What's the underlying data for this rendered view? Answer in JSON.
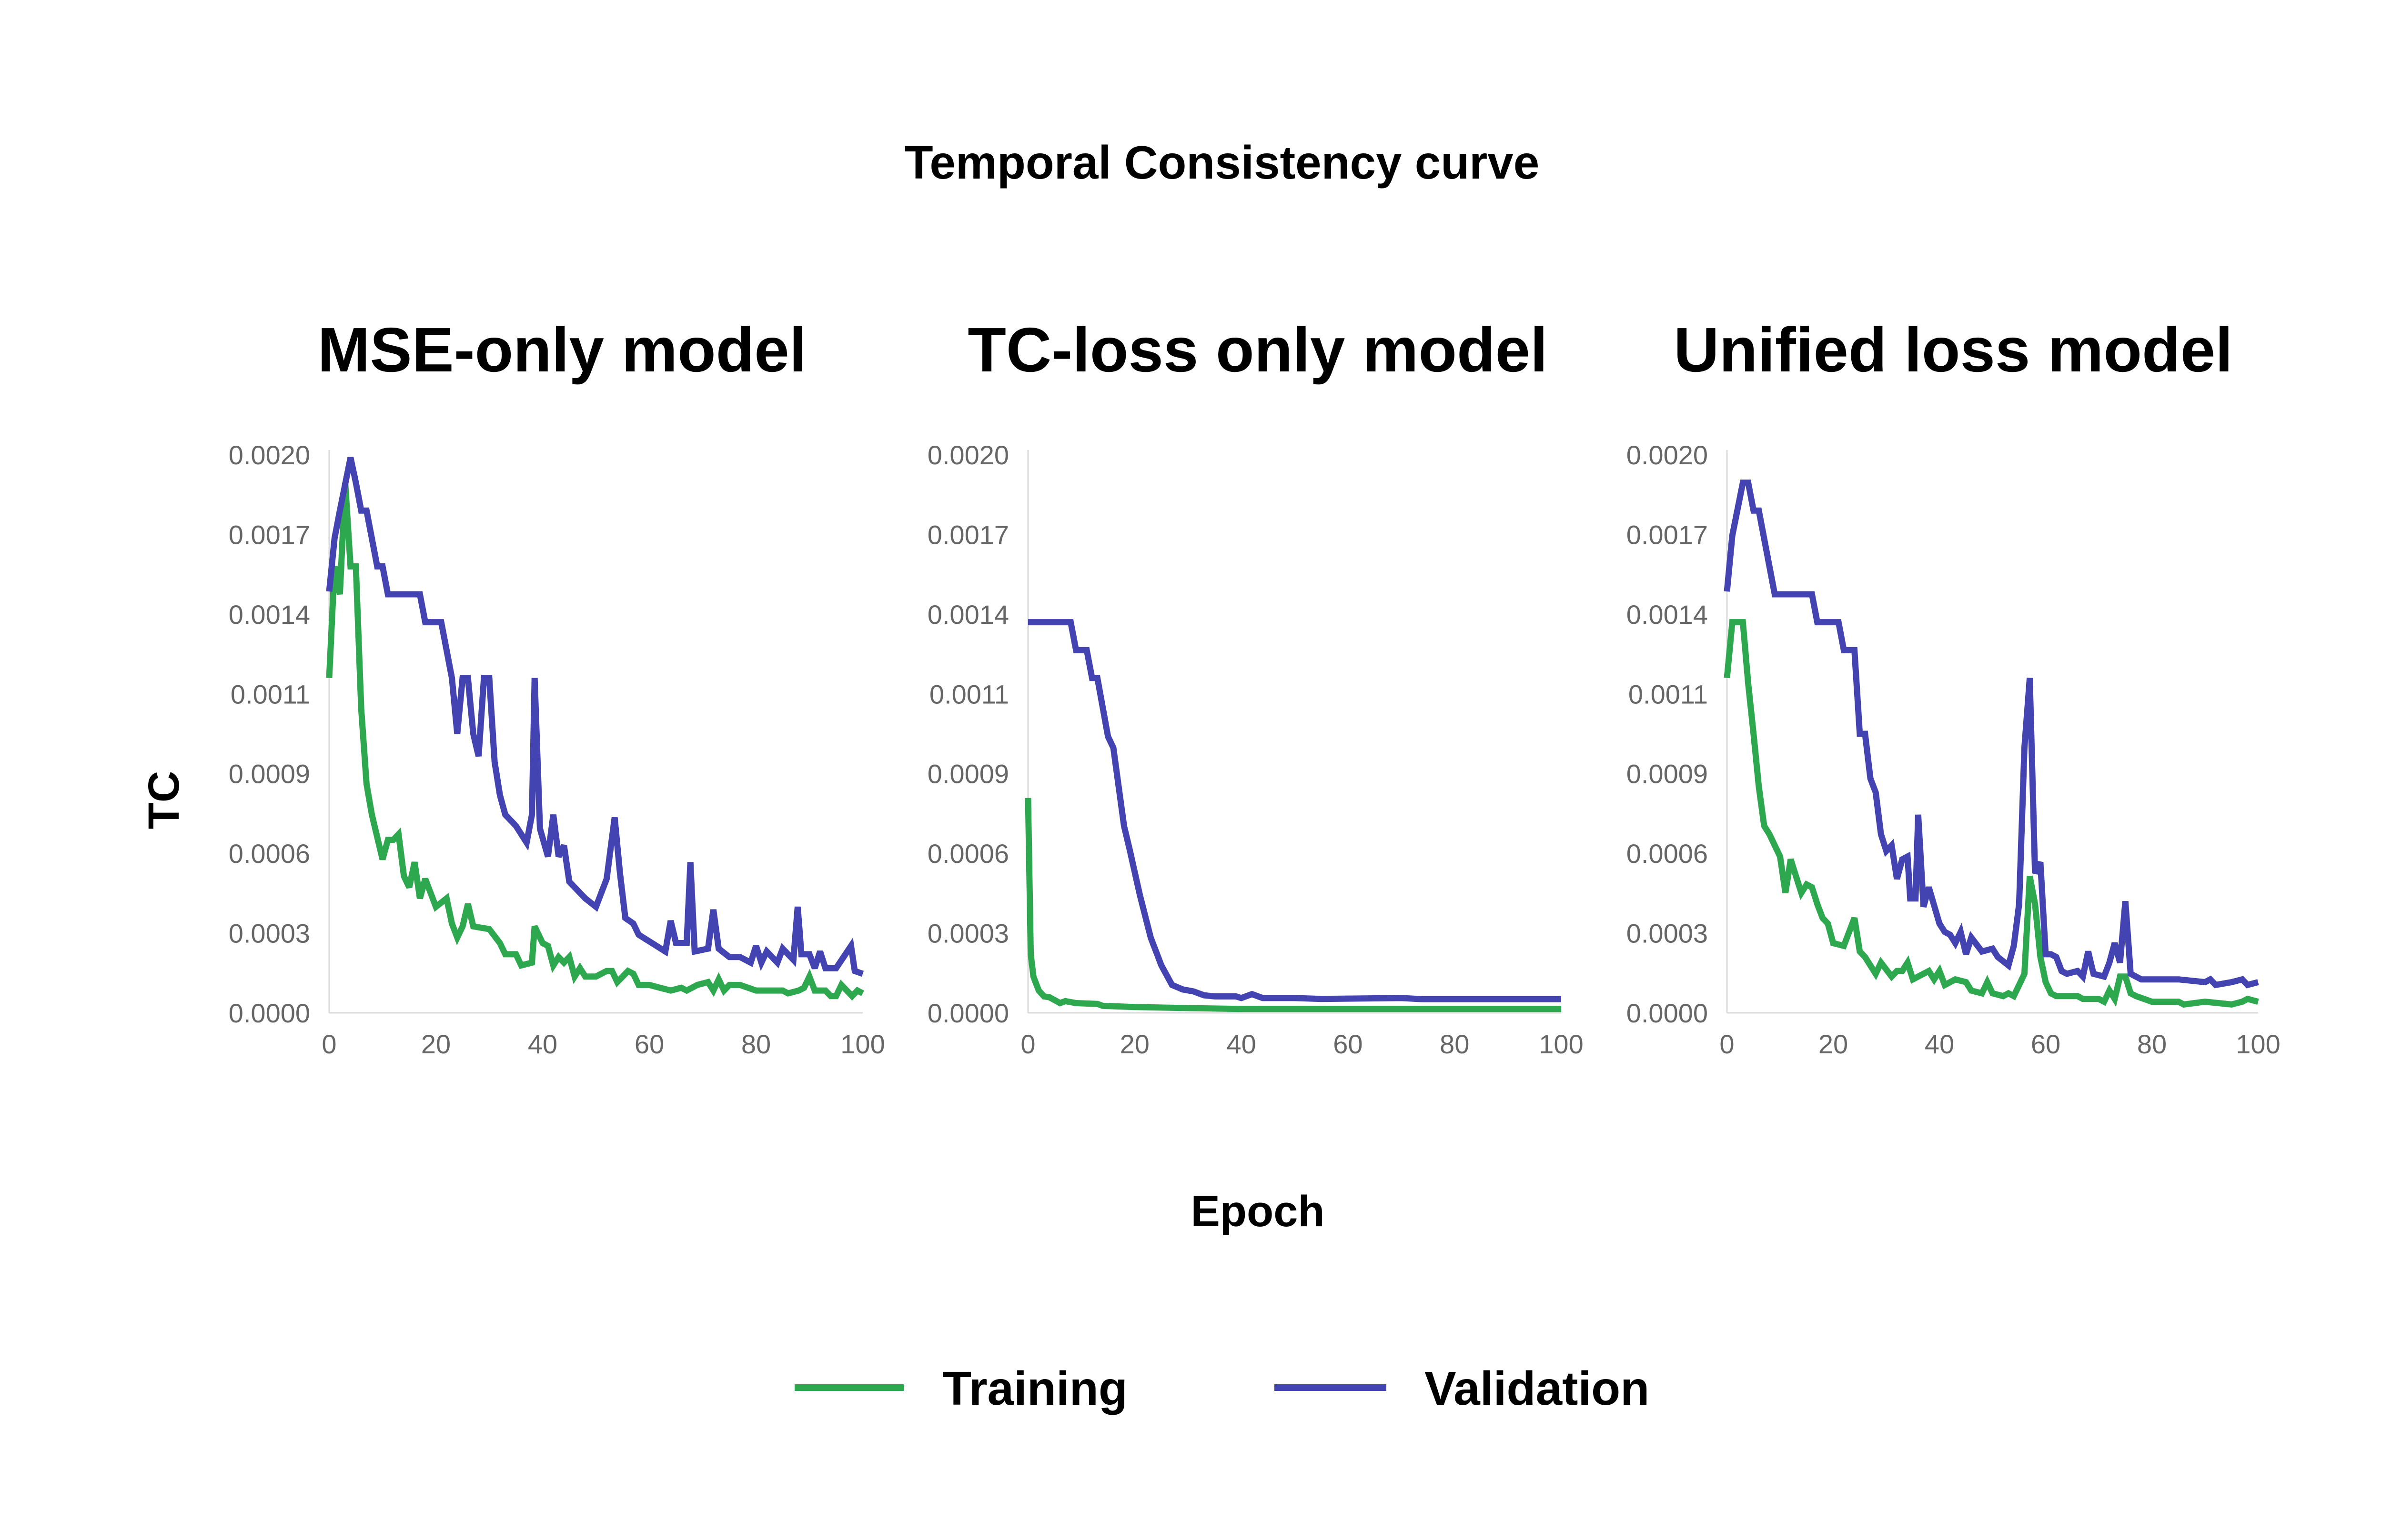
{
  "chart_data": [
    {
      "type": "line",
      "title": "MSE-only model",
      "xlabel": "Epoch",
      "ylabel": "TC",
      "xlim": [
        0,
        100
      ],
      "ylim": [
        0,
        0.002
      ],
      "xticks": [
        "0",
        "20",
        "40",
        "60",
        "80",
        "100"
      ],
      "yticks": [
        "0.0000",
        "0.0003",
        "0.0006",
        "0.0009",
        "0.0011",
        "0.0014",
        "0.0017",
        "0.0020"
      ],
      "grid": false,
      "series": [
        {
          "name": "Training",
          "x": [
            0,
            1,
            2,
            3,
            4,
            5,
            6,
            7,
            8,
            10,
            11,
            12,
            13,
            14,
            15,
            16,
            17,
            18,
            20,
            22,
            23,
            24,
            25,
            26,
            27,
            30,
            32,
            33,
            35,
            36,
            38,
            38.5,
            40,
            41,
            42,
            43,
            44,
            45,
            46,
            47,
            48,
            50,
            52,
            53,
            54,
            56,
            57,
            58,
            60,
            62,
            64,
            66,
            67,
            69,
            71,
            72,
            73,
            74,
            75,
            77,
            80,
            82,
            85,
            86,
            88,
            89,
            90,
            91,
            93,
            94,
            95,
            96,
            98,
            99,
            100
          ],
          "y": [
            0.0012,
            0.0016,
            0.0015,
            0.0019,
            0.0016,
            0.0016,
            0.00109,
            0.00082,
            0.00071,
            0.00055,
            0.00062,
            0.00062,
            0.00064,
            0.00049,
            0.00045,
            0.00054,
            0.00041,
            0.00048,
            0.00038,
            0.00041,
            0.00032,
            0.00027,
            0.00031,
            0.00039,
            0.00031,
            0.0003,
            0.00025,
            0.00021,
            0.00021,
            0.00017,
            0.00018,
            0.00031,
            0.00025,
            0.00024,
            0.00017,
            0.0002,
            0.00018,
            0.0002,
            0.00013,
            0.00016,
            0.00013,
            0.00013,
            0.00015,
            0.00015,
            0.00011,
            0.00015,
            0.00014,
            0.0001,
            0.0001,
            9e-05,
            8e-05,
            9e-05,
            8e-05,
            0.0001,
            0.00011,
            8e-05,
            0.00012,
            8e-05,
            0.0001,
            0.0001,
            8e-05,
            8e-05,
            8e-05,
            7e-05,
            8e-05,
            9e-05,
            0.00013,
            8e-05,
            8e-05,
            6e-05,
            6e-05,
            0.0001,
            6e-05,
            8e-05,
            7e-05
          ]
        },
        {
          "name": "Validation",
          "x": [
            0,
            1,
            2,
            4,
            5,
            6,
            7,
            9,
            10,
            11,
            17,
            18,
            21,
            23,
            24,
            25,
            26,
            27,
            28,
            29,
            30,
            31,
            32,
            33,
            35,
            37,
            38,
            38.5,
            39.5,
            41,
            42,
            43,
            44,
            45,
            48,
            50,
            52,
            53.5,
            54.5,
            55.5,
            57,
            58,
            63,
            64,
            65,
            66,
            67,
            67.7,
            68.5,
            71,
            72,
            73,
            75,
            77,
            79,
            80,
            81,
            82,
            84,
            85,
            87,
            87.8,
            88.5,
            90,
            91,
            92,
            93,
            95,
            97.8,
            98.5,
            100
          ],
          "y": [
            0.00151,
            0.0017,
            0.0018,
            0.00199,
            0.0019,
            0.0018,
            0.0018,
            0.0016,
            0.0016,
            0.0015,
            0.0015,
            0.0014,
            0.0014,
            0.0012,
            0.001,
            0.0012,
            0.0012,
            0.001,
            0.00092,
            0.0012,
            0.0012,
            0.0009,
            0.00078,
            0.00071,
            0.00067,
            0.00061,
            0.00071,
            0.0012,
            0.00066,
            0.00056,
            0.00071,
            0.00056,
            0.0006,
            0.00047,
            0.00041,
            0.00038,
            0.00048,
            0.0007,
            0.0005,
            0.00034,
            0.00032,
            0.00028,
            0.00022,
            0.00033,
            0.00025,
            0.00025,
            0.00025,
            0.00054,
            0.00022,
            0.00023,
            0.00037,
            0.00023,
            0.0002,
            0.0002,
            0.00018,
            0.00024,
            0.00018,
            0.00022,
            0.00018,
            0.00023,
            0.00019,
            0.00038,
            0.00021,
            0.00021,
            0.00016,
            0.00022,
            0.00016,
            0.00016,
            0.00024,
            0.00015,
            0.00014
          ]
        }
      ]
    },
    {
      "type": "line",
      "title": "TC-loss only model",
      "xlabel": "Epoch",
      "ylabel": "TC",
      "xlim": [
        0,
        100
      ],
      "ylim": [
        0,
        0.002
      ],
      "xticks": [
        "0",
        "20",
        "40",
        "60",
        "80",
        "100"
      ],
      "yticks": [
        "0.0000",
        "0.0003",
        "0.0006",
        "0.0009",
        "0.0011",
        "0.0014",
        "0.0017",
        "0.0020"
      ],
      "grid": false,
      "series": [
        {
          "name": "Training",
          "x": [
            0,
            0.5,
            1,
            2,
            3,
            4,
            6,
            7,
            9,
            13,
            14,
            20,
            30,
            40,
            60,
            80,
            100
          ],
          "y": [
            0.00077,
            0.00021,
            0.00013,
            8e-05,
            5.9e-05,
            5.6e-05,
            3.5e-05,
            4.2e-05,
            3.5e-05,
            3.2e-05,
            2.5e-05,
            2.1e-05,
            1.7e-05,
            1.4e-05,
            1.4e-05,
            1.4e-05,
            1.4e-05
          ]
        },
        {
          "name": "Validation",
          "x": [
            0,
            8,
            9,
            11,
            12,
            13,
            15,
            16,
            18,
            19,
            21,
            23,
            25,
            27,
            29,
            31,
            33,
            35,
            39,
            40,
            42,
            44,
            50,
            55,
            70,
            74,
            100
          ],
          "y": [
            0.0014,
            0.0014,
            0.0013,
            0.0013,
            0.0012,
            0.0012,
            0.00099,
            0.00095,
            0.00067,
            0.00059,
            0.00042,
            0.00027,
            0.00017,
            0.0001,
            8.4e-05,
            7.7e-05,
            6.3e-05,
            5.9e-05,
            5.9e-05,
            5.3e-05,
            6.7e-05,
            5.3e-05,
            5.3e-05,
            5e-05,
            5.3e-05,
            4.9e-05,
            4.9e-05
          ]
        }
      ]
    },
    {
      "type": "line",
      "title": "Unified loss model",
      "xlabel": "Epoch",
      "ylabel": "TC",
      "xlim": [
        0,
        100
      ],
      "ylim": [
        0,
        0.002
      ],
      "xticks": [
        "0",
        "20",
        "40",
        "60",
        "80",
        "100"
      ],
      "yticks": [
        "0.0000",
        "0.0003",
        "0.0006",
        "0.0009",
        "0.0011",
        "0.0014",
        "0.0017",
        "0.0020"
      ],
      "grid": false,
      "series": [
        {
          "name": "Training",
          "x": [
            0,
            1,
            2,
            3,
            4,
            5,
            6,
            7,
            8,
            10,
            11,
            12,
            13,
            14,
            15,
            16,
            17,
            18,
            19,
            20,
            22,
            24,
            25,
            26,
            28,
            29,
            31,
            32,
            33,
            34,
            35,
            36,
            38,
            39,
            40,
            41,
            43,
            45,
            46,
            48,
            49,
            50,
            52,
            53,
            54,
            55,
            56,
            57,
            58,
            59,
            60,
            61,
            62,
            66,
            67,
            70,
            71,
            72,
            73,
            74,
            75,
            76,
            77,
            80,
            85,
            86,
            90,
            95,
            97,
            98,
            100
          ],
          "y": [
            0.0012,
            0.0014,
            0.0014,
            0.0014,
            0.00118,
            0.001,
            0.00081,
            0.00067,
            0.00064,
            0.00056,
            0.00043,
            0.00055,
            0.00049,
            0.00043,
            0.00046,
            0.00045,
            0.00039,
            0.00034,
            0.00032,
            0.00025,
            0.00024,
            0.00034,
            0.00022,
            0.0002,
            0.00014,
            0.00018,
            0.00013,
            0.00015,
            0.00015,
            0.00018,
            0.00012,
            0.00013,
            0.00015,
            0.00012,
            0.00015,
            0.0001,
            0.00012,
            0.00011,
            8e-05,
            7e-05,
            0.00011,
            7e-05,
            6e-05,
            7e-05,
            6e-05,
            0.0001,
            0.00014,
            0.00049,
            0.00039,
            0.0002,
            0.00011,
            7e-05,
            6e-05,
            6e-05,
            5e-05,
            5e-05,
            4e-05,
            8e-05,
            5e-05,
            0.00013,
            0.00013,
            7e-05,
            6e-05,
            4e-05,
            4e-05,
            3e-05,
            4e-05,
            3e-05,
            4e-05,
            5e-05,
            4e-05
          ]
        },
        {
          "name": "Validation",
          "x": [
            0,
            1,
            3,
            4,
            5,
            6,
            9,
            16,
            17,
            21,
            22,
            24,
            25,
            26,
            27,
            28,
            29,
            30,
            31,
            32,
            33,
            34,
            34.5,
            35.5,
            36,
            37,
            38,
            40,
            41,
            42,
            43,
            44,
            45,
            46,
            48,
            50,
            51,
            53,
            54,
            55,
            56,
            57,
            58,
            59,
            60,
            61,
            62,
            63,
            64,
            66,
            67,
            68,
            69,
            71,
            72,
            73,
            74,
            75,
            76,
            77,
            78,
            80,
            85,
            90,
            91,
            92,
            95,
            97,
            98,
            100
          ],
          "y": [
            0.00151,
            0.00171,
            0.0019,
            0.0019,
            0.0018,
            0.0018,
            0.0015,
            0.0015,
            0.0014,
            0.0014,
            0.0013,
            0.0013,
            0.001,
            0.001,
            0.00084,
            0.00079,
            0.00064,
            0.00058,
            0.0006,
            0.00048,
            0.00055,
            0.00056,
            0.00041,
            0.00041,
            0.00071,
            0.00038,
            0.00045,
            0.00032,
            0.00029,
            0.00028,
            0.00025,
            0.00029,
            0.00021,
            0.00027,
            0.00022,
            0.00023,
            0.0002,
            0.00017,
            0.00024,
            0.00039,
            0.00095,
            0.0012,
            0.0005,
            0.00054,
            0.00021,
            0.00021,
            0.0002,
            0.00015,
            0.00014,
            0.00015,
            0.00013,
            0.00022,
            0.00014,
            0.00013,
            0.00018,
            0.00025,
            0.00018,
            0.0004,
            0.00014,
            0.00013,
            0.00012,
            0.00012,
            0.00012,
            0.00011,
            0.00012,
            0.0001,
            0.00011,
            0.00012,
            0.0001,
            0.00011
          ]
        }
      ]
    }
  ],
  "figure": {
    "title": "Temporal Consistency curve",
    "ylabel": "TC",
    "xlabel": "Epoch"
  },
  "legend": {
    "placement": "bottom-center",
    "items": [
      {
        "label": "Training",
        "color": "#2ea84e"
      },
      {
        "label": "Validation",
        "color": "#4343b2"
      }
    ]
  },
  "colors": {
    "Training": "#2ea84e",
    "Validation": "#4343b2",
    "axis": "#d9d9d9",
    "tick": "#666666"
  }
}
